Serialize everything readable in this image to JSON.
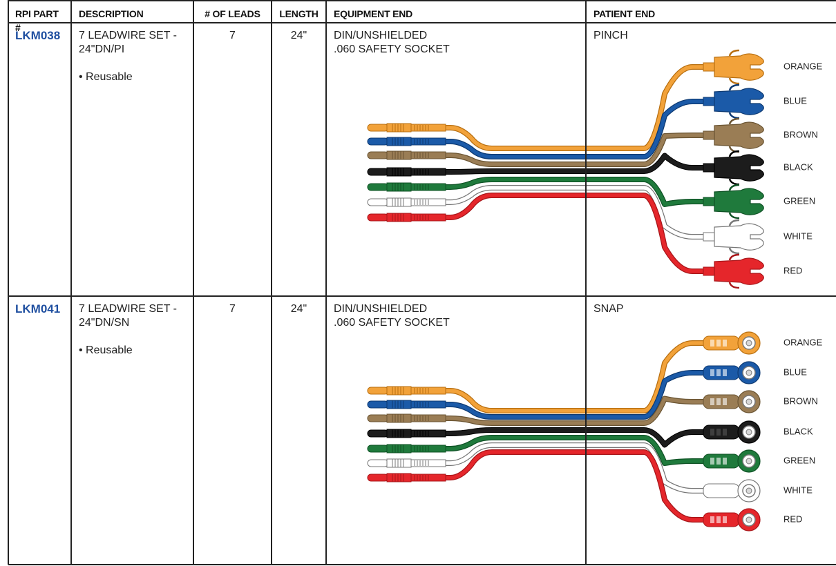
{
  "table": {
    "headers": [
      "RPI PART #",
      "DESCRIPTION",
      "# OF LEADS",
      "LENGTH",
      "EQUIPMENT END",
      "PATIENT END"
    ],
    "rows": [
      {
        "part": "LKM038",
        "description": [
          "7 LEADWIRE SET -",
          "24\"DN/PI"
        ],
        "feature": "• Reusable",
        "leads": 7,
        "length": "24\"",
        "equipment_end": [
          "DIN/UNSHIELDED",
          ".060 SAFETY SOCKET"
        ],
        "patient_end": "PINCH",
        "lead_labels": [
          "ORANGE",
          "BLUE",
          "BROWN",
          "BLACK",
          "GREEN",
          "WHITE",
          "RED"
        ]
      },
      {
        "part": "LKM041",
        "description": [
          "7 LEADWIRE SET -",
          "24\"DN/SN"
        ],
        "feature": "• Reusable",
        "leads": 7,
        "length": "24\"",
        "equipment_end": [
          "DIN/UNSHIELDED",
          ".060 SAFETY SOCKET"
        ],
        "patient_end": "SNAP",
        "lead_labels": [
          "ORANGE",
          "BLUE",
          "BROWN",
          "BLACK",
          "GREEN",
          "WHITE",
          "RED"
        ]
      }
    ]
  }
}
